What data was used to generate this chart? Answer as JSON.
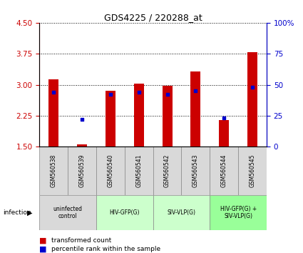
{
  "title": "GDS4225 / 220288_at",
  "samples": [
    "GSM560538",
    "GSM560539",
    "GSM560540",
    "GSM560541",
    "GSM560542",
    "GSM560543",
    "GSM560544",
    "GSM560545"
  ],
  "transformed_counts": [
    3.13,
    1.55,
    2.85,
    3.03,
    2.98,
    3.32,
    2.15,
    3.78
  ],
  "percentile_ranks": [
    44,
    22,
    42,
    44,
    42,
    45,
    23,
    48
  ],
  "ylim_left": [
    1.5,
    4.5
  ],
  "yticks_left": [
    1.5,
    2.25,
    3.0,
    3.75,
    4.5
  ],
  "ylim_right": [
    0,
    100
  ],
  "yticks_right": [
    0,
    25,
    50,
    75,
    100
  ],
  "ytick_right_labels": [
    "0",
    "25",
    "50",
    "75",
    "100%"
  ],
  "bar_color": "#cc0000",
  "dot_color": "#0000cc",
  "bar_bottom": 1.5,
  "groups": [
    {
      "label": "uninfected\ncontrol",
      "indices": [
        0,
        1
      ],
      "color": "#d9d9d9"
    },
    {
      "label": "HIV-GFP(G)",
      "indices": [
        2,
        3
      ],
      "color": "#ccffcc"
    },
    {
      "label": "SIV-VLP(G)",
      "indices": [
        4,
        5
      ],
      "color": "#ccffcc"
    },
    {
      "label": "HIV-GFP(G) +\nSIV-VLP(G)",
      "indices": [
        6,
        7
      ],
      "color": "#99ff99"
    }
  ],
  "group_label": "infection",
  "legend_tc": "transformed count",
  "legend_pr": "percentile rank within the sample",
  "bar_width": 0.35,
  "tick_color_left": "#cc0000",
  "tick_color_right": "#0000cc",
  "grid_color": "#000000"
}
